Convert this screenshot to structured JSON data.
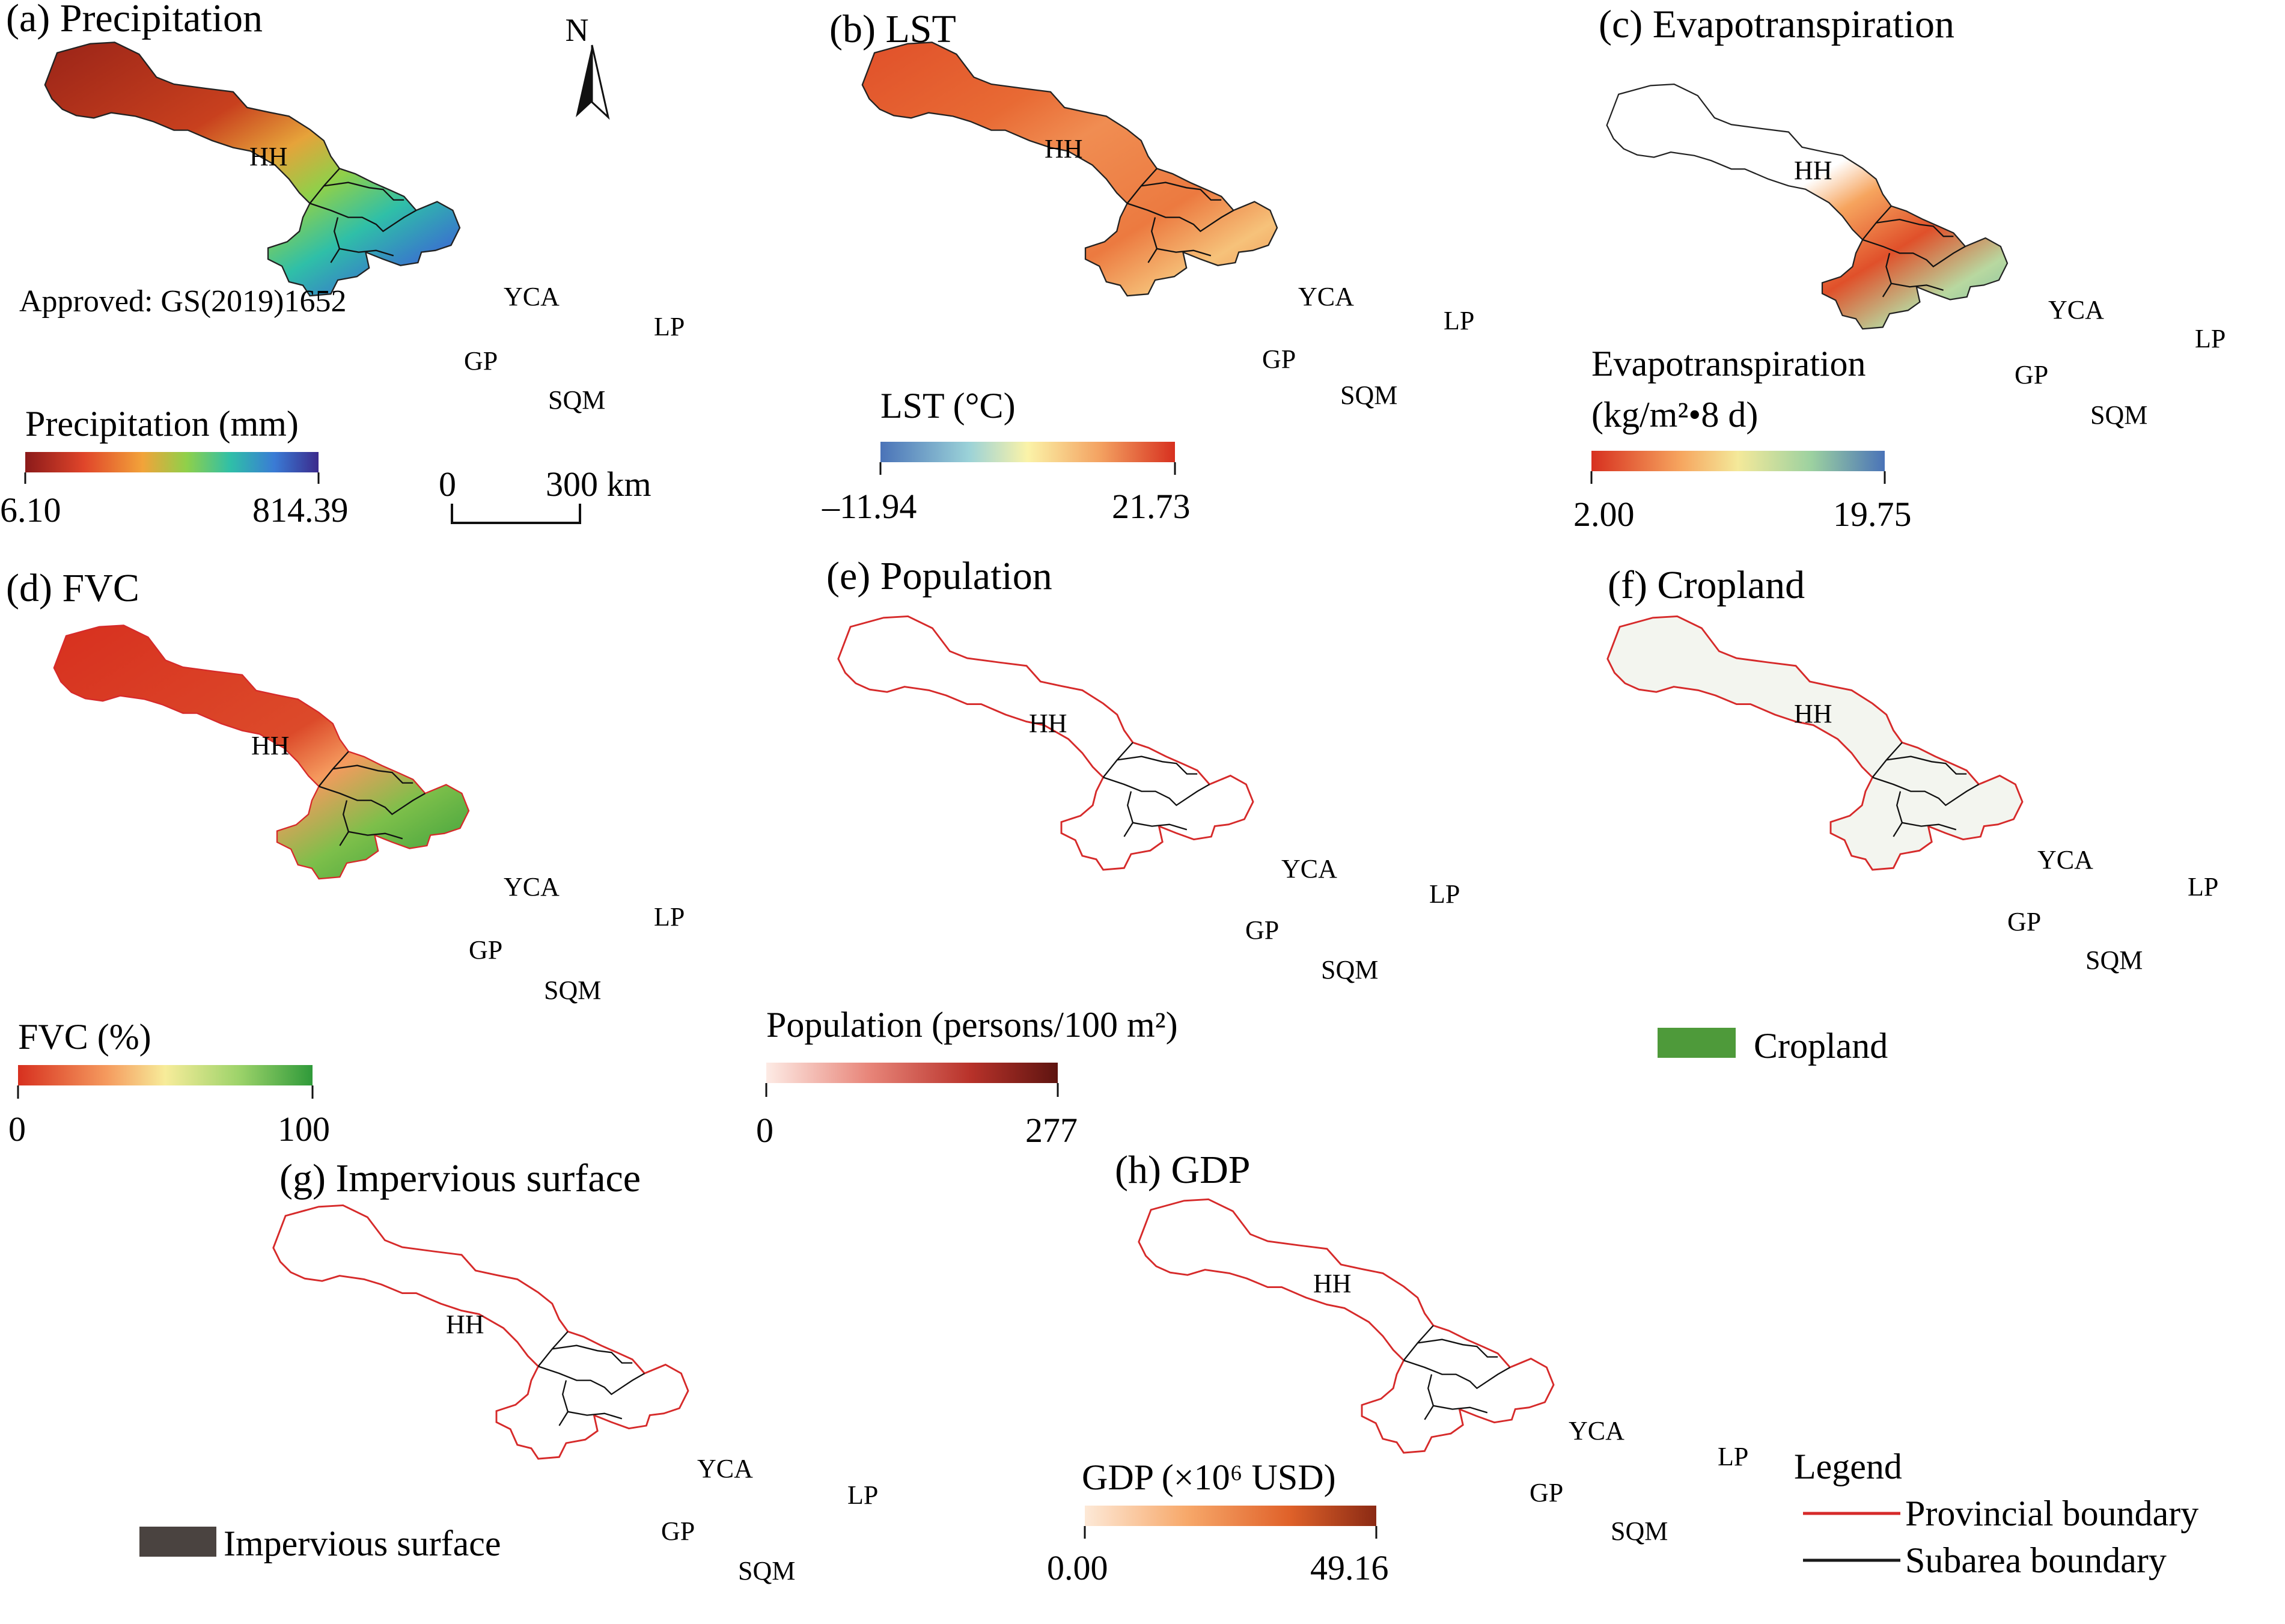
{
  "figure": {
    "north_letter": "N",
    "approval": "Approved: GS(2019)1652",
    "scale_bar": {
      "start": "0",
      "end": "300 km"
    }
  },
  "regions": [
    "HH",
    "YCA",
    "LP",
    "GP",
    "SQM"
  ],
  "panels": {
    "a": {
      "title": "(a) Precipitation",
      "legend_title": "Precipitation (mm)",
      "min": "6.10",
      "max": "814.39",
      "colors": [
        "#8b1a1a",
        "#e0452a",
        "#f2a33a",
        "#8fd04a",
        "#2fbfa8",
        "#3a7bd5",
        "#3b2a8c"
      ]
    },
    "b": {
      "title": "(b) LST",
      "legend_title": "LST (°C)",
      "min": "–11.94",
      "max": "21.73",
      "colors": [
        "#4a73b8",
        "#9bd2d8",
        "#fbf3a8",
        "#f3a060",
        "#d7301f"
      ]
    },
    "c": {
      "title": "(c) Evapotranspiration",
      "legend_title_line1": "Evapotranspiration",
      "legend_title_line2": "(kg/m²•8 d)",
      "min": "2.00",
      "max": "19.75",
      "colors": [
        "#d7301f",
        "#f6a45e",
        "#f4e99a",
        "#9cd1a0",
        "#4a73b8"
      ]
    },
    "d": {
      "title": "(d) FVC",
      "legend_title": "FVC (%)",
      "min": "0",
      "max": "100",
      "colors": [
        "#d7301f",
        "#f59a5e",
        "#f7ec9a",
        "#9dd36a",
        "#2f9a3a"
      ]
    },
    "e": {
      "title": "(e) Population",
      "legend_title": "Population (persons/100 m²)",
      "min": "0",
      "max": "277",
      "colors": [
        "#fdebe5",
        "#e8867a",
        "#b8322a",
        "#5e1410"
      ]
    },
    "f": {
      "title": "(f) Cropland",
      "legend_label": "Cropland",
      "swatch": "#4e9a3a"
    },
    "g": {
      "title": "(g) Impervious surface",
      "legend_label": "Impervious surface",
      "swatch": "#4a4340"
    },
    "h": {
      "title": "(h) GDP",
      "legend_title": "GDP (×10⁶ USD)",
      "min": "0.00",
      "max": "49.16",
      "colors": [
        "#fde9d7",
        "#f7a86a",
        "#e0622a",
        "#8b2a14"
      ]
    }
  },
  "legend": {
    "title": "Legend",
    "provincial": "Provincial boundary",
    "subarea": "Subarea boundary",
    "provincial_color": "#d62a2a",
    "subarea_color": "#1a1a1a"
  }
}
